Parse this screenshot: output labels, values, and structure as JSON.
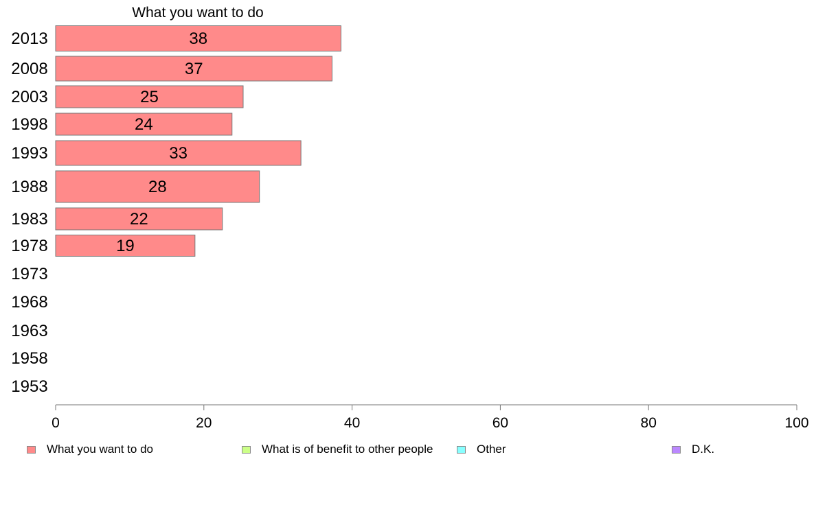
{
  "chart_data": {
    "type": "bar",
    "orientation": "horizontal",
    "series_title": "What you want to do",
    "categories": [
      "2013",
      "2008",
      "2003",
      "1998",
      "1993",
      "1988",
      "1983",
      "1978",
      "1973",
      "1968",
      "1963",
      "1958",
      "1953"
    ],
    "series": [
      {
        "name": "What you want to do",
        "color": "#ff8a8a",
        "values": [
          38.5,
          37.3,
          25.3,
          23.8,
          33.1,
          27.5,
          22.5,
          18.8,
          null,
          null,
          null,
          null,
          null
        ],
        "labels": [
          "38",
          "37",
          "25",
          "24",
          "33",
          "28",
          "22",
          "19",
          "",
          "",
          "",
          "",
          ""
        ]
      }
    ],
    "xlim": [
      0,
      100
    ],
    "xticks": [
      0,
      20,
      40,
      60,
      80,
      100
    ],
    "grid": false,
    "legend": {
      "placement": "bottom",
      "items": [
        {
          "label": "What you want to do",
          "color": "#ff8a8a"
        },
        {
          "label": "What is of benefit to other people",
          "color": "#ccff88"
        },
        {
          "label": "Other",
          "color": "#88ffff"
        },
        {
          "label": "D.K.",
          "color": "#bb88ff"
        }
      ]
    }
  }
}
